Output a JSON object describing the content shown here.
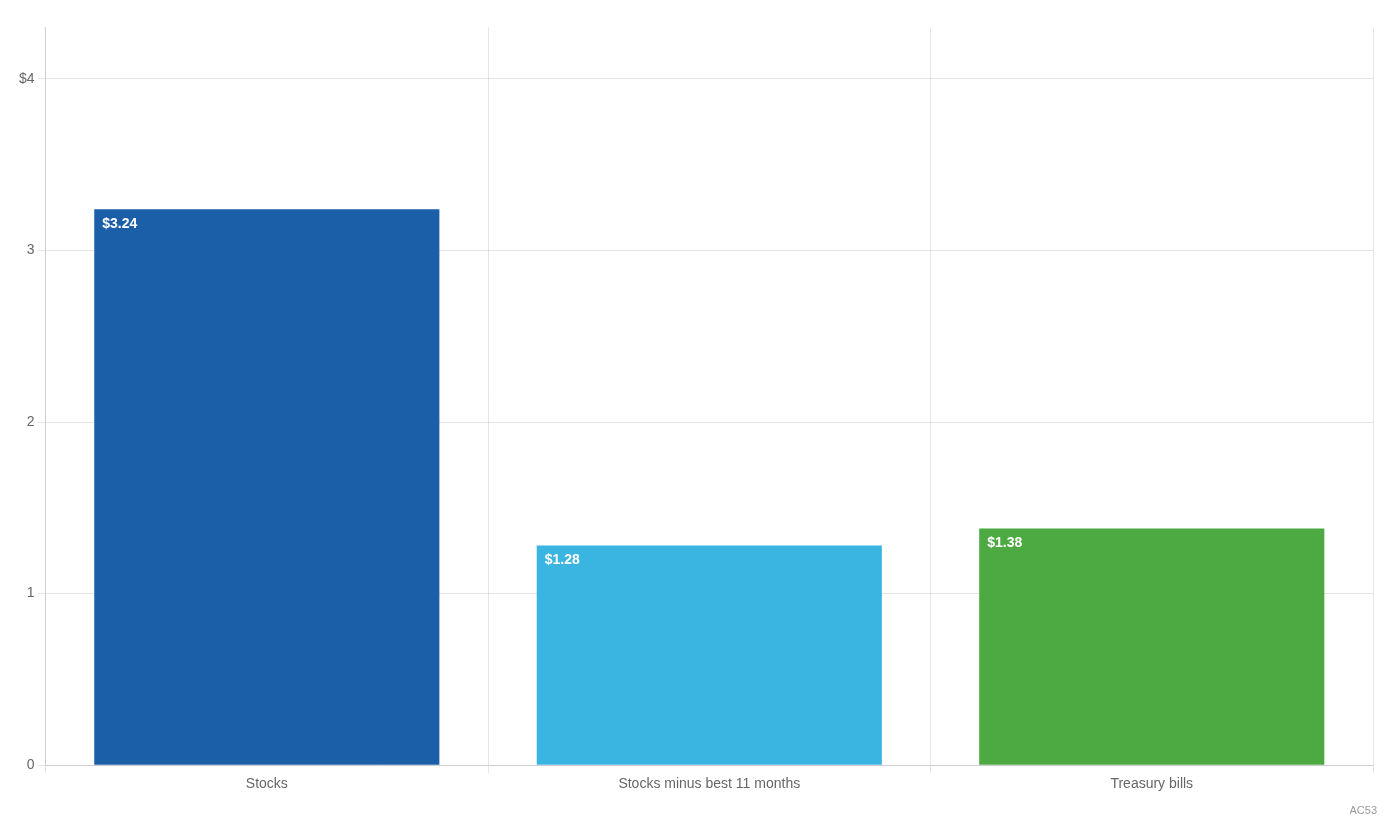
{
  "chart_data": {
    "type": "bar",
    "categories": [
      "Stocks",
      "Stocks minus best 11 months",
      "Treasury bills"
    ],
    "values": [
      3.24,
      1.28,
      1.38
    ],
    "value_labels": [
      "$3.24",
      "$1.28",
      "$1.38"
    ],
    "data_labels": true,
    "colors": [
      "#1a5fa8",
      "#3ab4e0",
      "#4daa43"
    ],
    "ylim": [
      0,
      4.3
    ],
    "yticks": [
      0,
      1,
      2,
      3,
      {
        "value": 4,
        "label": "$4"
      }
    ],
    "grid": true,
    "annotations": [
      "AC53"
    ]
  }
}
